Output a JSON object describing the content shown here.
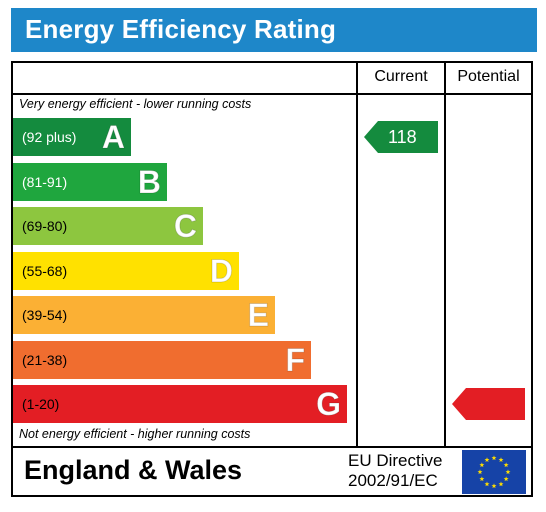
{
  "title": "Energy Efficiency Rating",
  "columns": {
    "current": "Current",
    "potential": "Potential"
  },
  "notes": {
    "top": "Very energy efficient - lower running costs",
    "bottom": "Not energy efficient - higher running costs"
  },
  "bands": [
    {
      "letter": "A",
      "range": "(92 plus)",
      "color": "#148b3e",
      "range_text_color": "white"
    },
    {
      "letter": "B",
      "range": "(81-91)",
      "color": "#1fa63e",
      "range_text_color": "white"
    },
    {
      "letter": "C",
      "range": "(69-80)",
      "color": "#8dc63f",
      "range_text_color": "dark"
    },
    {
      "letter": "D",
      "range": "(55-68)",
      "color": "#ffe100",
      "range_text_color": "dark"
    },
    {
      "letter": "E",
      "range": "(39-54)",
      "color": "#fbb034",
      "range_text_color": "dark"
    },
    {
      "letter": "F",
      "range": "(21-38)",
      "color": "#f06d2f",
      "range_text_color": "dark"
    },
    {
      "letter": "G",
      "range": "(1-20)",
      "color": "#e31e24",
      "range_text_color": "dark"
    }
  ],
  "current_rating": {
    "value": "118",
    "band": "A",
    "color": "#148b3e"
  },
  "potential_rating": {
    "value": "",
    "band": "G",
    "color": "#e31e24"
  },
  "footer": {
    "region": "England & Wales",
    "directive_line1": "EU Directive",
    "directive_line2": "2002/91/EC",
    "flag_icon": "eu-flag-icon"
  }
}
